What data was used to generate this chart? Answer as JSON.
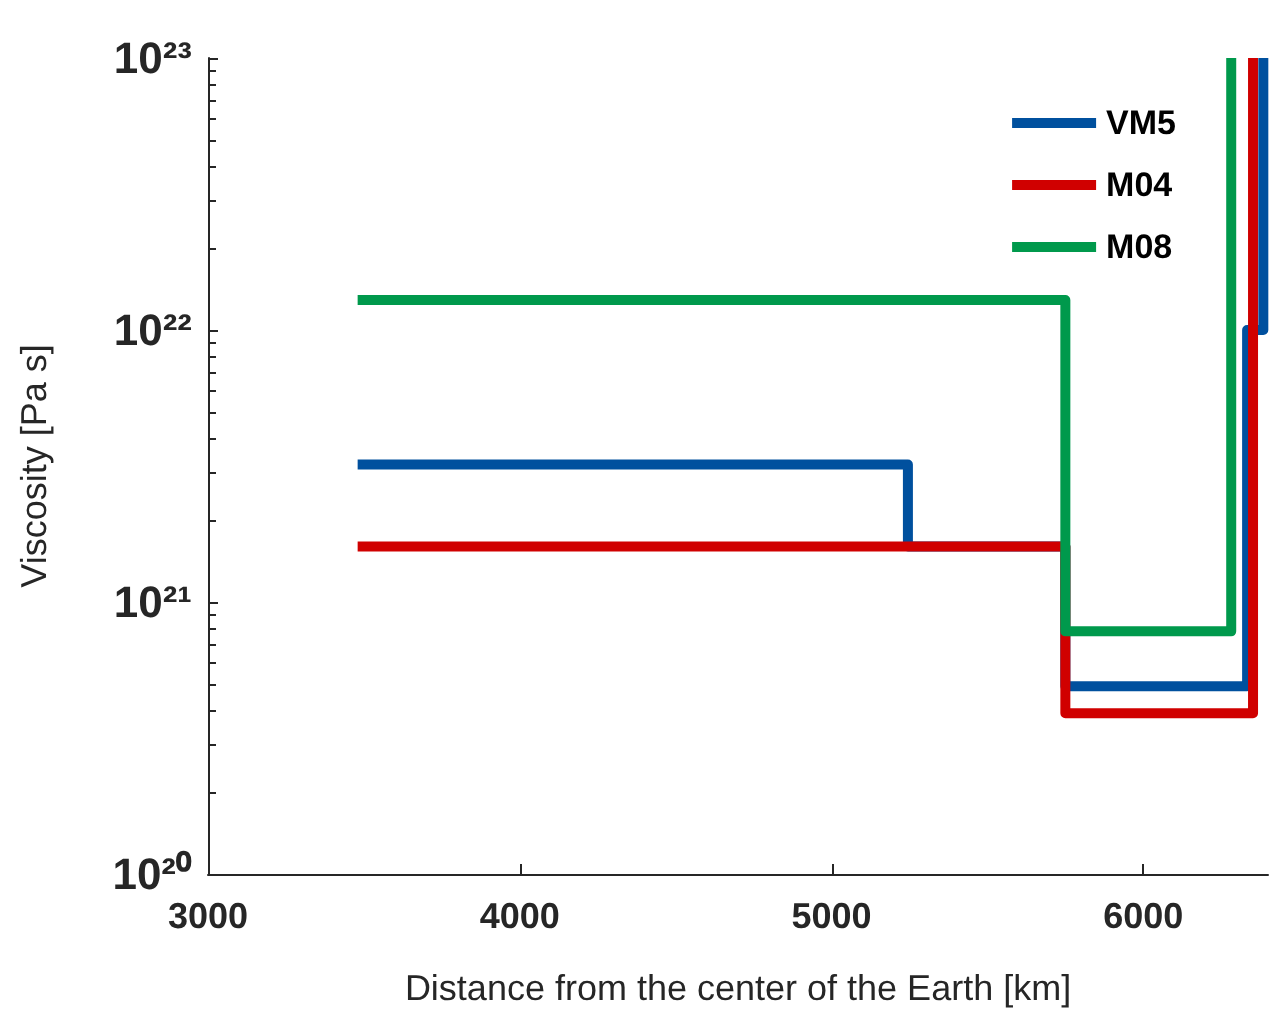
{
  "chart_data": {
    "type": "step",
    "xlabel": "Distance from the center of the Earth [km]",
    "ylabel": "Viscosity [Pa s]",
    "series": [
      {
        "name": "VM5",
        "color": "#00509e",
        "x": [
          3480,
          5245,
          5750,
          6333,
          6385
        ],
        "values": [
          3.2e+21,
          1.6e+21,
          4.9e+20,
          1e+22,
          1e+23
        ]
      },
      {
        "name": "M04",
        "color": "#d00000",
        "x": [
          3480,
          5750,
          6352
        ],
        "values": [
          1.6e+21,
          3.9e+20,
          1e+23
        ]
      },
      {
        "name": "M08",
        "color": "#00994c",
        "x": [
          3480,
          5750,
          6282
        ],
        "values": [
          1.29e+22,
          7.8e+20,
          1e+23
        ]
      }
    ],
    "xlim": [
      3000,
      6400
    ],
    "xticks": [
      3000,
      4000,
      5000,
      6000
    ],
    "ylim": [
      1e+20,
      1e+23
    ],
    "yticks": [
      {
        "value": 1e+20,
        "label": "10²⁰"
      },
      {
        "value": 1e+21,
        "label": "10²¹"
      },
      {
        "value": 1e+22,
        "label": "10²²"
      },
      {
        "value": 1e+23,
        "label": "10²³"
      }
    ],
    "log": "y",
    "grid": false,
    "legend": "top right",
    "line_style": "solid",
    "marker": "none"
  }
}
